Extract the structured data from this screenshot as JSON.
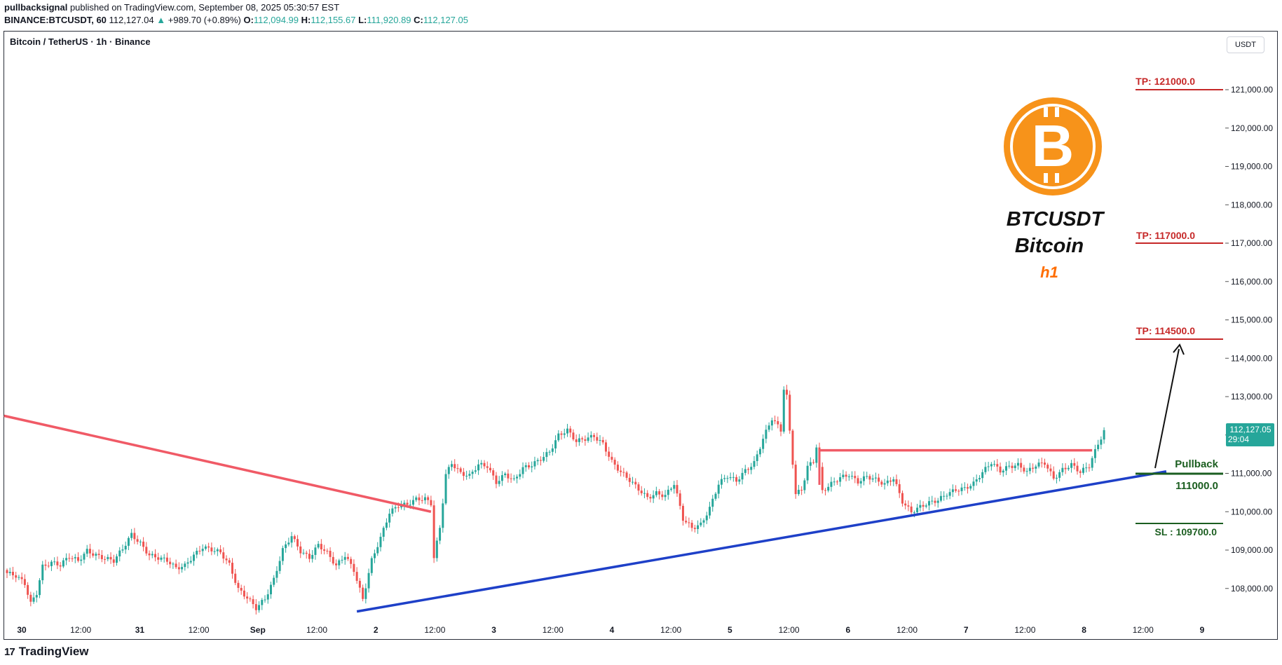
{
  "header": {
    "publisher": "pullbacksignal",
    "published_text": "published on TradingView.com, September 08, 2025 05:30:57 EST",
    "symbol": "BINANCE:BTCUSDT, 60",
    "last": "112,127.04",
    "change": "+989.70 (+0.89%)",
    "open": "112,094.99",
    "high": "112,155.67",
    "low": "111,920.89",
    "close": "112,127.05"
  },
  "chart_title": "Bitcoin / TetherUS · 1h · Binance",
  "currency": "USDT",
  "footer": {
    "brand": "TradingView",
    "logo_glyph": "17"
  },
  "colors": {
    "up": "#26a69a",
    "down": "#ef5350",
    "tp": "#c62828",
    "sl_line": "#1b5e20",
    "trend_red": "#f05a66",
    "trend_blue": "#1e40c8",
    "btc_orange": "#f7931a"
  },
  "price_badge": {
    "value": "112,127.05",
    "countdown": "29:04"
  },
  "labels": {
    "tp1": "TP: 121000.0",
    "tp2": "TP: 117000.0",
    "tp3": "TP: 114500.0",
    "pullback": "Pullback",
    "entry": "111000.0",
    "sl": "SL : 109700.0",
    "ticker": "BTCUSDT",
    "name": "Bitcoin",
    "timeframe": "h1"
  },
  "chart_data": {
    "type": "candlestick",
    "title": "Bitcoin / TetherUS · 1h · Binance",
    "ylim": [
      107800,
      121600
    ],
    "y_ticks": [
      108000,
      109000,
      110000,
      111000,
      112000,
      113000,
      114000,
      115000,
      116000,
      117000,
      118000,
      119000,
      120000,
      121000
    ],
    "y_tick_labels": [
      "108,000.00",
      "109,000.00",
      "110,000.00",
      "111,000.00",
      "112,000.00",
      "113,000.00",
      "114,000.00",
      "115,000.00",
      "116,000.00",
      "117,000.00",
      "118,000.00",
      "119,000.00",
      "120,000.00",
      "121,000.00"
    ],
    "x_ticks": [
      "30",
      "12:00",
      "31",
      "12:00",
      "Sep",
      "12:00",
      "2",
      "12:00",
      "3",
      "12:00",
      "4",
      "12:00",
      "5",
      "12:00",
      "6",
      "12:00",
      "7",
      "12:00",
      "8",
      "12:00",
      "9"
    ],
    "series_path": [
      [
        0,
        108400
      ],
      [
        3,
        108300
      ],
      [
        6,
        108100
      ],
      [
        8,
        107600
      ],
      [
        10,
        107900
      ],
      [
        12,
        108600
      ],
      [
        15,
        108700
      ],
      [
        18,
        108600
      ],
      [
        21,
        108800
      ],
      [
        24,
        108700
      ],
      [
        27,
        109000
      ],
      [
        30,
        108900
      ],
      [
        33,
        108800
      ],
      [
        36,
        108700
      ],
      [
        39,
        109000
      ],
      [
        42,
        109400
      ],
      [
        45,
        109200
      ],
      [
        48,
        108900
      ],
      [
        51,
        108800
      ],
      [
        54,
        108700
      ],
      [
        57,
        108500
      ],
      [
        60,
        108600
      ],
      [
        63,
        108900
      ],
      [
        66,
        109100
      ],
      [
        69,
        109000
      ],
      [
        72,
        108900
      ],
      [
        75,
        108600
      ],
      [
        78,
        108000
      ],
      [
        81,
        107800
      ],
      [
        84,
        107500
      ],
      [
        87,
        107700
      ],
      [
        90,
        108200
      ],
      [
        93,
        109000
      ],
      [
        96,
        109400
      ],
      [
        99,
        109000
      ],
      [
        102,
        108800
      ],
      [
        105,
        109100
      ],
      [
        108,
        108900
      ],
      [
        111,
        108600
      ],
      [
        114,
        108900
      ],
      [
        117,
        108500
      ],
      [
        120,
        107700
      ],
      [
        123,
        108700
      ],
      [
        126,
        109300
      ],
      [
        129,
        110000
      ],
      [
        132,
        110200
      ],
      [
        135,
        110200
      ],
      [
        138,
        110300
      ],
      [
        141,
        110300
      ],
      [
        143,
        110200
      ],
      [
        144,
        108800
      ],
      [
        146,
        109600
      ],
      [
        148,
        111000
      ],
      [
        150,
        111300
      ],
      [
        153,
        111000
      ],
      [
        156,
        110900
      ],
      [
        159,
        111200
      ],
      [
        162,
        111200
      ],
      [
        165,
        110800
      ],
      [
        168,
        111000
      ],
      [
        171,
        110800
      ],
      [
        174,
        111100
      ],
      [
        177,
        111200
      ],
      [
        180,
        111400
      ],
      [
        183,
        111600
      ],
      [
        186,
        112000
      ],
      [
        189,
        112100
      ],
      [
        192,
        111800
      ],
      [
        195,
        111900
      ],
      [
        198,
        112000
      ],
      [
        201,
        111800
      ],
      [
        204,
        111300
      ],
      [
        207,
        111000
      ],
      [
        210,
        110800
      ],
      [
        213,
        110600
      ],
      [
        216,
        110400
      ],
      [
        219,
        110500
      ],
      [
        222,
        110400
      ],
      [
        225,
        110700
      ],
      [
        228,
        109800
      ],
      [
        231,
        109600
      ],
      [
        234,
        109700
      ],
      [
        237,
        110100
      ],
      [
        240,
        110700
      ],
      [
        243,
        110900
      ],
      [
        246,
        110800
      ],
      [
        249,
        111100
      ],
      [
        252,
        111300
      ],
      [
        255,
        111900
      ],
      [
        258,
        112400
      ],
      [
        261,
        112100
      ],
      [
        262,
        113200
      ],
      [
        263,
        113000
      ],
      [
        264,
        112100
      ],
      [
        266,
        110500
      ],
      [
        268,
        110600
      ],
      [
        270,
        111200
      ],
      [
        272,
        111300
      ],
      [
        273,
        111700
      ],
      [
        275,
        110500
      ],
      [
        278,
        110700
      ],
      [
        281,
        110900
      ],
      [
        284,
        111000
      ],
      [
        287,
        110800
      ],
      [
        290,
        110900
      ],
      [
        293,
        110800
      ],
      [
        296,
        110700
      ],
      [
        299,
        110900
      ],
      [
        302,
        110300
      ],
      [
        305,
        110000
      ],
      [
        308,
        110100
      ],
      [
        311,
        110200
      ],
      [
        314,
        110300
      ],
      [
        317,
        110500
      ],
      [
        320,
        110600
      ],
      [
        323,
        110600
      ],
      [
        326,
        110700
      ],
      [
        329,
        111000
      ],
      [
        332,
        111300
      ],
      [
        335,
        111100
      ],
      [
        338,
        111200
      ],
      [
        341,
        111200
      ],
      [
        344,
        111000
      ],
      [
        347,
        111200
      ],
      [
        350,
        111300
      ],
      [
        353,
        110900
      ],
      [
        356,
        111100
      ],
      [
        359,
        111200
      ],
      [
        362,
        111000
      ],
      [
        365,
        111200
      ],
      [
        368,
        111800
      ],
      [
        370,
        112127
      ]
    ],
    "trendlines": [
      {
        "color": "red",
        "from": [
          -1,
          112500
        ],
        "to": [
          143,
          110000
        ]
      },
      {
        "color": "blue",
        "from": [
          118,
          107400
        ],
        "to": [
          391,
          111050
        ]
      },
      {
        "color": "red",
        "from": [
          274,
          111600
        ],
        "to": [
          366,
          111600
        ]
      }
    ],
    "levels": [
      {
        "label": "TP: 121000.0",
        "price": 121000
      },
      {
        "label": "TP: 117000.0",
        "price": 117000
      },
      {
        "label": "TP: 114500.0",
        "price": 114500
      },
      {
        "label": "111000.0",
        "price": 111000
      },
      {
        "label": "SL : 109700.0",
        "price": 109700
      }
    ],
    "last_price": 112127.05
  }
}
